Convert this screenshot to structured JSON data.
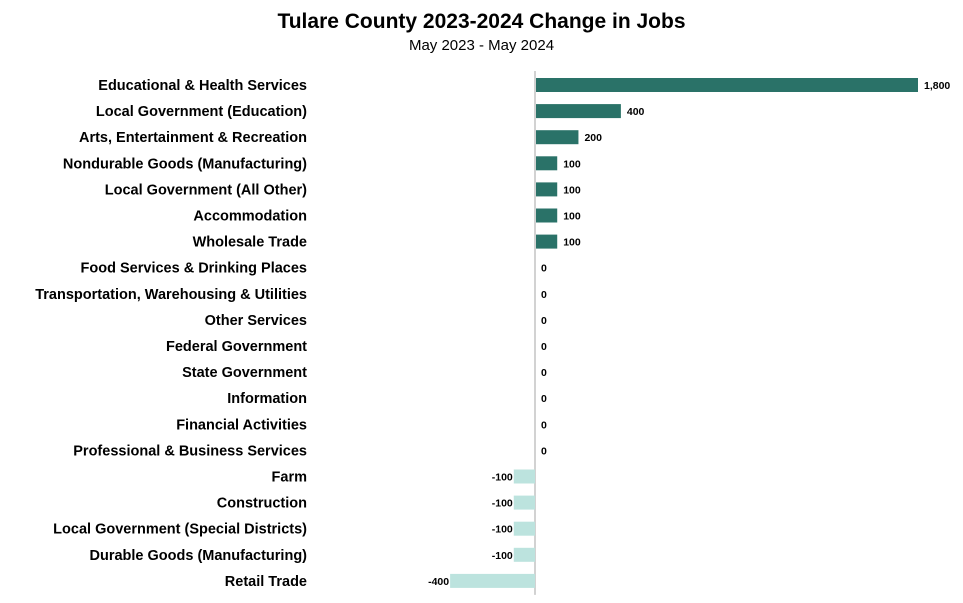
{
  "chart_data": {
    "type": "bar",
    "orientation": "horizontal",
    "title": "Tulare County 2023-2024 Change in Jobs",
    "subtitle": "May 2023 - May 2024",
    "xlabel": "",
    "ylabel": "",
    "grid": false,
    "legend": "none",
    "xlim": [
      -400,
      1800
    ],
    "colors": {
      "positive": "#2a7268",
      "negative": "#bce3de",
      "axis": "#a6a6a6"
    },
    "categories": [
      "Educational & Health Services",
      "Local Government (Education)",
      "Arts, Entertainment & Recreation",
      "Nondurable Goods (Manufacturing)",
      "Local Government (All Other)",
      "Accommodation",
      "Wholesale Trade",
      "Food Services & Drinking Places",
      "Transportation, Warehousing & Utilities",
      "Other Services",
      "Federal Government",
      "State Government",
      "Information",
      "Financial Activities",
      "Professional & Business Services",
      "Farm",
      "Construction",
      "Local Government (Special Districts)",
      "Durable Goods (Manufacturing)",
      "Retail Trade"
    ],
    "values": [
      1800,
      400,
      200,
      100,
      100,
      100,
      100,
      0,
      0,
      0,
      0,
      0,
      0,
      0,
      0,
      -100,
      -100,
      -100,
      -100,
      -400
    ],
    "value_labels": [
      "1,800",
      "400",
      "200",
      "100",
      "100",
      "100",
      "100",
      "0",
      "0",
      "0",
      "0",
      "0",
      "0",
      "0",
      "0",
      "-100",
      "-100",
      "-100",
      "-100",
      "-400"
    ]
  }
}
